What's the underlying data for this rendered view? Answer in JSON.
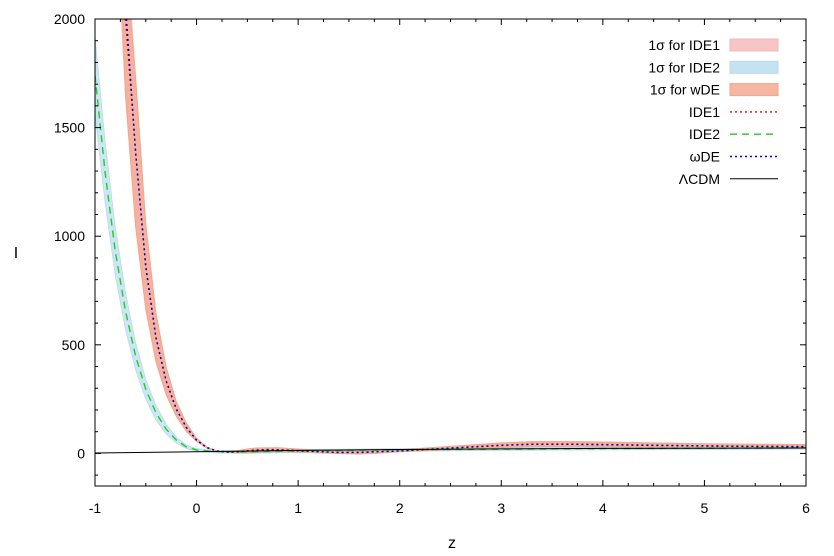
{
  "chart_data": {
    "type": "line",
    "xlabel": "z",
    "ylabel": "I",
    "xlim": [
      -1,
      6
    ],
    "ylim": [
      -150,
      2000
    ],
    "xticks": [
      -1,
      0,
      1,
      2,
      3,
      4,
      5,
      6
    ],
    "yticks": [
      0,
      500,
      1000,
      1500,
      2000
    ],
    "legend_position": "top-right",
    "bands": [
      {
        "name": "1σ for IDE1",
        "color": "#f4b8b8",
        "upper": [
          [
            -0.74,
            2000
          ],
          [
            -0.7,
            1640
          ],
          [
            -0.6,
            1040
          ],
          [
            -0.5,
            660
          ],
          [
            -0.4,
            420
          ],
          [
            -0.3,
            270
          ],
          [
            -0.2,
            170
          ],
          [
            -0.1,
            100
          ],
          [
            0,
            55
          ],
          [
            0.1,
            25
          ],
          [
            0.2,
            10
          ],
          [
            0.3,
            8
          ],
          [
            0.4,
            12
          ],
          [
            0.5,
            20
          ],
          [
            0.6,
            25
          ],
          [
            0.8,
            26
          ],
          [
            1,
            20
          ],
          [
            1.2,
            15
          ],
          [
            1.5,
            12
          ],
          [
            2,
            16
          ],
          [
            2.5,
            32
          ],
          [
            3,
            48
          ],
          [
            3.3,
            54
          ],
          [
            3.7,
            54
          ],
          [
            4,
            52
          ],
          [
            4.5,
            48
          ],
          [
            5,
            44
          ],
          [
            5.5,
            42
          ],
          [
            6,
            40
          ]
        ],
        "lower": [
          [
            -0.64,
            2000
          ],
          [
            -0.6,
            1740
          ],
          [
            -0.5,
            1060
          ],
          [
            -0.4,
            650
          ],
          [
            -0.3,
            400
          ],
          [
            -0.2,
            240
          ],
          [
            -0.1,
            140
          ],
          [
            0,
            70
          ],
          [
            0.1,
            30
          ],
          [
            0.2,
            12
          ],
          [
            0.3,
            5
          ],
          [
            0.4,
            3
          ],
          [
            0.5,
            4
          ],
          [
            0.6,
            6
          ],
          [
            0.8,
            8
          ],
          [
            1,
            6
          ],
          [
            1.2,
            3
          ],
          [
            1.4,
            0
          ],
          [
            1.6,
            -2
          ],
          [
            1.8,
            2
          ],
          [
            2,
            8
          ],
          [
            2.5,
            18
          ],
          [
            3,
            28
          ],
          [
            3.3,
            32
          ],
          [
            3.7,
            32
          ],
          [
            4,
            31
          ],
          [
            4.5,
            28
          ],
          [
            5,
            26
          ],
          [
            5.5,
            25
          ],
          [
            6,
            24
          ]
        ]
      },
      {
        "name": "1σ for IDE2",
        "color": "#b7dbee",
        "upper": [
          [
            -1,
            1920
          ],
          [
            -0.9,
            1430
          ],
          [
            -0.8,
            1040
          ],
          [
            -0.7,
            740
          ],
          [
            -0.6,
            510
          ],
          [
            -0.5,
            340
          ],
          [
            -0.4,
            220
          ],
          [
            -0.3,
            135
          ],
          [
            -0.2,
            75
          ],
          [
            -0.1,
            38
          ],
          [
            0,
            22
          ],
          [
            0.2,
            14
          ],
          [
            0.5,
            14
          ],
          [
            1,
            18
          ],
          [
            1.5,
            20
          ],
          [
            2,
            22
          ],
          [
            3,
            26
          ],
          [
            4,
            28
          ],
          [
            5,
            30
          ],
          [
            6,
            32
          ]
        ],
        "lower": [
          [
            -1,
            1560
          ],
          [
            -0.9,
            1150
          ],
          [
            -0.8,
            820
          ],
          [
            -0.7,
            570
          ],
          [
            -0.6,
            385
          ],
          [
            -0.5,
            250
          ],
          [
            -0.4,
            155
          ],
          [
            -0.3,
            90
          ],
          [
            -0.2,
            48
          ],
          [
            -0.1,
            22
          ],
          [
            0,
            10
          ],
          [
            0.2,
            2
          ],
          [
            0.5,
            0
          ],
          [
            1,
            4
          ],
          [
            1.5,
            8
          ],
          [
            2,
            10
          ],
          [
            3,
            14
          ],
          [
            4,
            16
          ],
          [
            5,
            18
          ],
          [
            6,
            20
          ]
        ]
      },
      {
        "name": "1σ for wDE",
        "color": "#f2a58a",
        "upper": [
          [
            -0.73,
            2000
          ],
          [
            -0.7,
            1650
          ],
          [
            -0.6,
            1045
          ],
          [
            -0.5,
            665
          ],
          [
            -0.4,
            425
          ],
          [
            -0.3,
            272
          ],
          [
            -0.2,
            172
          ],
          [
            -0.1,
            102
          ],
          [
            0,
            56
          ],
          [
            0.1,
            26
          ],
          [
            0.2,
            11
          ],
          [
            0.3,
            9
          ],
          [
            0.4,
            13
          ],
          [
            0.5,
            21
          ],
          [
            0.6,
            26
          ],
          [
            0.8,
            27
          ],
          [
            1,
            21
          ],
          [
            1.2,
            16
          ],
          [
            1.5,
            13
          ],
          [
            2,
            17
          ],
          [
            2.5,
            33
          ],
          [
            3,
            49
          ],
          [
            3.3,
            55
          ],
          [
            3.7,
            55
          ],
          [
            4,
            53
          ],
          [
            4.5,
            49
          ],
          [
            5,
            45
          ],
          [
            5.5,
            43
          ],
          [
            6,
            41
          ]
        ],
        "lower": [
          [
            -0.65,
            2000
          ],
          [
            -0.6,
            1730
          ],
          [
            -0.5,
            1055
          ],
          [
            -0.4,
            645
          ],
          [
            -0.3,
            398
          ],
          [
            -0.2,
            238
          ],
          [
            -0.1,
            138
          ],
          [
            0,
            69
          ],
          [
            0.1,
            29
          ],
          [
            0.2,
            11
          ],
          [
            0.3,
            4
          ],
          [
            0.4,
            2
          ],
          [
            0.5,
            3
          ],
          [
            0.6,
            5
          ],
          [
            0.8,
            7
          ],
          [
            1,
            5
          ],
          [
            1.2,
            2
          ],
          [
            1.4,
            -1
          ],
          [
            1.6,
            -3
          ],
          [
            1.8,
            1
          ],
          [
            2,
            7
          ],
          [
            2.5,
            17
          ],
          [
            3,
            27
          ],
          [
            3.3,
            31
          ],
          [
            3.7,
            31
          ],
          [
            4,
            30
          ],
          [
            4.5,
            27
          ],
          [
            5,
            25
          ],
          [
            5.5,
            24
          ],
          [
            6,
            23
          ]
        ]
      }
    ],
    "series": [
      {
        "name": "IDE1",
        "color": "#e00000",
        "dash": "dotted",
        "points": [
          [
            -0.7,
            2000
          ],
          [
            -0.6,
            1390
          ],
          [
            -0.5,
            860
          ],
          [
            -0.4,
            535
          ],
          [
            -0.3,
            335
          ],
          [
            -0.2,
            205
          ],
          [
            -0.1,
            120
          ],
          [
            0,
            62
          ],
          [
            0.1,
            28
          ],
          [
            0.2,
            11
          ],
          [
            0.3,
            7
          ],
          [
            0.4,
            8
          ],
          [
            0.5,
            12
          ],
          [
            0.6,
            16
          ],
          [
            0.7,
            18
          ],
          [
            0.8,
            17
          ],
          [
            1,
            13
          ],
          [
            1.2,
            9
          ],
          [
            1.4,
            5
          ],
          [
            1.6,
            5
          ],
          [
            1.8,
            9
          ],
          [
            2,
            12
          ],
          [
            2.5,
            25
          ],
          [
            3,
            38
          ],
          [
            3.3,
            43
          ],
          [
            3.7,
            43
          ],
          [
            4,
            41
          ],
          [
            4.5,
            38
          ],
          [
            5,
            35
          ],
          [
            5.5,
            33
          ],
          [
            6,
            32
          ]
        ]
      },
      {
        "name": "IDE2",
        "color": "#22cc22",
        "dash": "dashed",
        "points": [
          [
            -1,
            1740
          ],
          [
            -0.9,
            1290
          ],
          [
            -0.8,
            930
          ],
          [
            -0.7,
            655
          ],
          [
            -0.6,
            448
          ],
          [
            -0.5,
            295
          ],
          [
            -0.4,
            188
          ],
          [
            -0.3,
            112
          ],
          [
            -0.2,
            62
          ],
          [
            -0.1,
            30
          ],
          [
            0,
            16
          ],
          [
            0.2,
            8
          ],
          [
            0.5,
            7
          ],
          [
            1,
            11
          ],
          [
            1.5,
            14
          ],
          [
            2,
            16
          ],
          [
            3,
            20
          ],
          [
            4,
            22
          ],
          [
            5,
            24
          ],
          [
            6,
            26
          ]
        ]
      },
      {
        "name": "ωDE",
        "color": "#0000cc",
        "dash": "dotted",
        "points": [
          [
            -0.69,
            2000
          ],
          [
            -0.6,
            1385
          ],
          [
            -0.5,
            858
          ],
          [
            -0.4,
            533
          ],
          [
            -0.3,
            334
          ],
          [
            -0.2,
            204
          ],
          [
            -0.1,
            119
          ],
          [
            0,
            61
          ],
          [
            0.1,
            27
          ],
          [
            0.2,
            10
          ],
          [
            0.3,
            6
          ],
          [
            0.4,
            7
          ],
          [
            0.5,
            11
          ],
          [
            0.6,
            15
          ],
          [
            0.7,
            17
          ],
          [
            0.8,
            16
          ],
          [
            1,
            12
          ],
          [
            1.2,
            8
          ],
          [
            1.4,
            4
          ],
          [
            1.6,
            4
          ],
          [
            1.8,
            8
          ],
          [
            2,
            11
          ],
          [
            2.5,
            24
          ],
          [
            3,
            37
          ],
          [
            3.3,
            42
          ],
          [
            3.7,
            42
          ],
          [
            4,
            40
          ],
          [
            4.5,
            37
          ],
          [
            5,
            34
          ],
          [
            5.5,
            32
          ],
          [
            6,
            31
          ]
        ]
      },
      {
        "name": "ΛCDM",
        "color": "#000000",
        "dash": "solid",
        "points": [
          [
            -1,
            2
          ],
          [
            0,
            8
          ],
          [
            1,
            14
          ],
          [
            2,
            18
          ],
          [
            3,
            21
          ],
          [
            4,
            23
          ],
          [
            5,
            24
          ],
          [
            6,
            25
          ]
        ]
      }
    ],
    "legend_entries": [
      "1σ for IDE1",
      "1σ for IDE2",
      "1σ for wDE",
      "IDE1",
      "IDE2",
      "ωDE",
      "ΛCDM"
    ]
  }
}
